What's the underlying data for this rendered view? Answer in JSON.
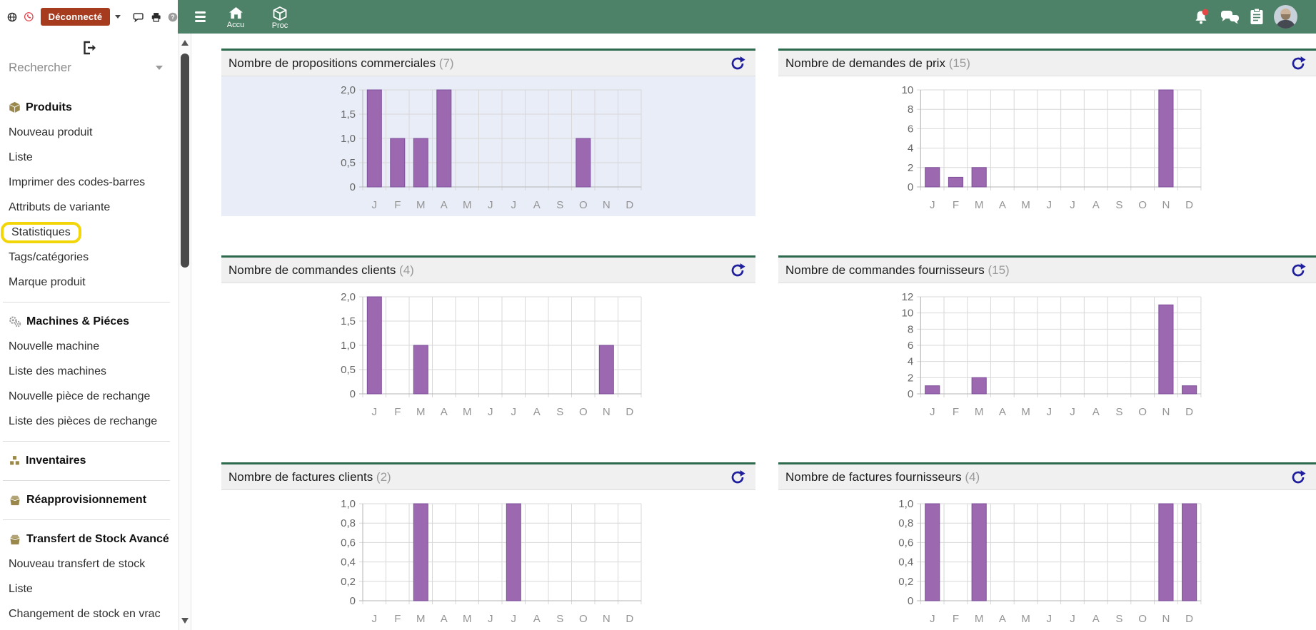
{
  "topbar": {
    "disconnect_label": "Déconnecté",
    "nav": {
      "home_label": "Accu",
      "products_label": "Proc"
    }
  },
  "sidebar": {
    "search_placeholder": "Rechercher",
    "highlighted_item": "Statistiques",
    "sections": [
      {
        "title": "Produits",
        "icon": "cube-icon",
        "items": [
          "Nouveau produit",
          "Liste",
          "Imprimer des codes-barres",
          "Attributs de variante",
          "Statistiques",
          "Tags/catégories",
          "Marque produit"
        ]
      },
      {
        "title": "Machines & Piéces",
        "icon": "gears-icon",
        "items": [
          "Nouvelle machine",
          "Liste des machines",
          "Nouvelle pièce de rechange",
          "Liste des pièces de rechange"
        ]
      },
      {
        "title": "Inventaires",
        "icon": "blocks-icon",
        "items": []
      },
      {
        "title": "Réapprovisionnement",
        "icon": "box-icon",
        "items": []
      },
      {
        "title": "Transfert de Stock Avancé",
        "icon": "box-icon",
        "items": [
          "Nouveau transfert de stock",
          "Liste",
          "Changement de stock en vrac"
        ]
      }
    ]
  },
  "colors": {
    "navbar_green": "#4e8268",
    "card_border_green": "#2d6a4d",
    "bar_fill": "#9c69b0",
    "bar_border": "#7d4e9b",
    "refresh_blue": "#1f1f9e",
    "highlight_yellow": "#f2d60a",
    "badge_red": "#a63b1e",
    "chart1_bg": "#e8edf7"
  },
  "chart_data": {
    "type": "bar",
    "categories": [
      "J",
      "F",
      "M",
      "A",
      "M",
      "J",
      "J",
      "A",
      "S",
      "O",
      "N",
      "D"
    ],
    "legend": "none",
    "grid": true,
    "charts": [
      {
        "title": "Nombre de propositions commerciales",
        "count": 7,
        "ylim": [
          0,
          2
        ],
        "yticks": [
          "2,0",
          "1,5",
          "1,0",
          "0,5",
          "0"
        ],
        "values": [
          2,
          1,
          1,
          2,
          0,
          0,
          0,
          0,
          0,
          1,
          0,
          0
        ],
        "plot_bg": "#e8edf7"
      },
      {
        "title": "Nombre de demandes de prix",
        "count": 15,
        "ylim": [
          0,
          10
        ],
        "yticks": [
          "10",
          "8",
          "6",
          "4",
          "2",
          "0"
        ],
        "values": [
          2,
          1,
          2,
          0,
          0,
          0,
          0,
          0,
          0,
          0,
          10,
          0
        ]
      },
      {
        "title": "Nombre de commandes clients",
        "count": 4,
        "ylim": [
          0,
          2
        ],
        "yticks": [
          "2,0",
          "1,5",
          "1,0",
          "0,5",
          "0"
        ],
        "values": [
          2,
          0,
          1,
          0,
          0,
          0,
          0,
          0,
          0,
          0,
          1,
          0
        ]
      },
      {
        "title": "Nombre de commandes fournisseurs",
        "count": 15,
        "ylim": [
          0,
          12
        ],
        "yticks": [
          "12",
          "10",
          "8",
          "6",
          "4",
          "2",
          "0"
        ],
        "values": [
          1,
          0,
          2,
          0,
          0,
          0,
          0,
          0,
          0,
          0,
          11,
          1
        ]
      },
      {
        "title": "Nombre de factures clients",
        "count": 2,
        "ylim": [
          0,
          1
        ],
        "yticks": [
          "1,0",
          "0,8",
          "0,6",
          "0,4",
          "0,2",
          "0"
        ],
        "values": [
          0,
          0,
          1,
          0,
          0,
          0,
          1,
          0,
          0,
          0,
          0,
          0
        ]
      },
      {
        "title": "Nombre de factures fournisseurs",
        "count": 4,
        "ylim": [
          0,
          1
        ],
        "yticks": [
          "1,0",
          "0,8",
          "0,6",
          "0,4",
          "0,2",
          "0"
        ],
        "values": [
          1,
          0,
          1,
          0,
          0,
          0,
          0,
          0,
          0,
          0,
          1,
          1
        ]
      }
    ]
  }
}
